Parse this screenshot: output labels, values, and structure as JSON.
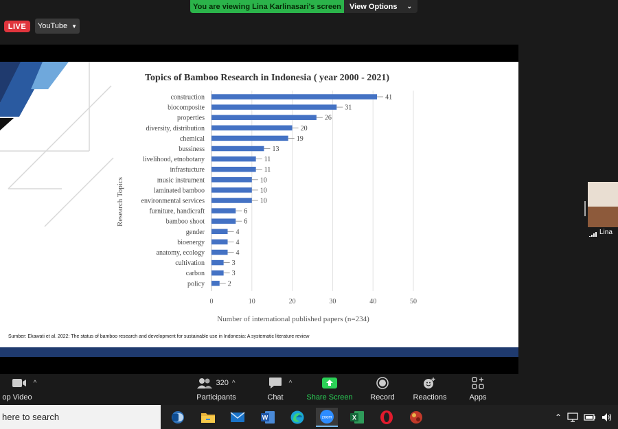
{
  "banner": {
    "viewing_text": "You are viewing Lina Karlinasari's screen",
    "view_options_label": "View Options"
  },
  "stream": {
    "live_label": "LIVE",
    "platform_label": "YouTube"
  },
  "slide": {
    "source_note": "Sumber: Ekawati et al. 2022: The status of bamboo research and development for sustainable use in Indonesia: A systematic literature review"
  },
  "chart_data": {
    "type": "bar",
    "orientation": "horizontal",
    "title": "Topics of Bamboo Research in Indonesia ( year 2000 - 2021)",
    "xlabel": "Number of international published papers (n=234)",
    "ylabel": "Research Topics",
    "xlim": [
      0,
      50
    ],
    "xticks": [
      "0",
      "10",
      "20",
      "30",
      "40",
      "50"
    ],
    "grid": true,
    "bar_color": "#4472c4",
    "categories": [
      "construction",
      "biocomposite",
      "properties",
      "diversity, distribution",
      "chemical",
      "bussiness",
      "livelihood, etnobotany",
      "infrastucture",
      "music instrument",
      "laminated bamboo",
      "environmental services",
      "furniture, handicraft",
      "bamboo shoot",
      "gender",
      "bioenergy",
      "anatomy, ecology",
      "cultivation",
      "carbon",
      "policy"
    ],
    "values": [
      41,
      31,
      26,
      20,
      19,
      13,
      11,
      11,
      10,
      10,
      10,
      6,
      6,
      4,
      4,
      4,
      3,
      3,
      2
    ]
  },
  "participant": {
    "name": "Lina"
  },
  "toolbar": {
    "video_label": "op Video",
    "participants_label": "Participants",
    "participants_count": "320",
    "chat_label": "Chat",
    "share_label": "Share Screen",
    "record_label": "Record",
    "reactions_label": "Reactions",
    "apps_label": "Apps",
    "share_color": "#2bd157"
  },
  "taskbar": {
    "search_placeholder": "here to search",
    "apps": [
      "outlook-icon",
      "file-explorer-icon",
      "mail-icon",
      "word-icon",
      "edge-icon",
      "zoom-icon",
      "excel-icon",
      "opera-icon",
      "game-icon"
    ],
    "zoom_label": "zoom",
    "excel_label": "X",
    "word_label": "W"
  }
}
